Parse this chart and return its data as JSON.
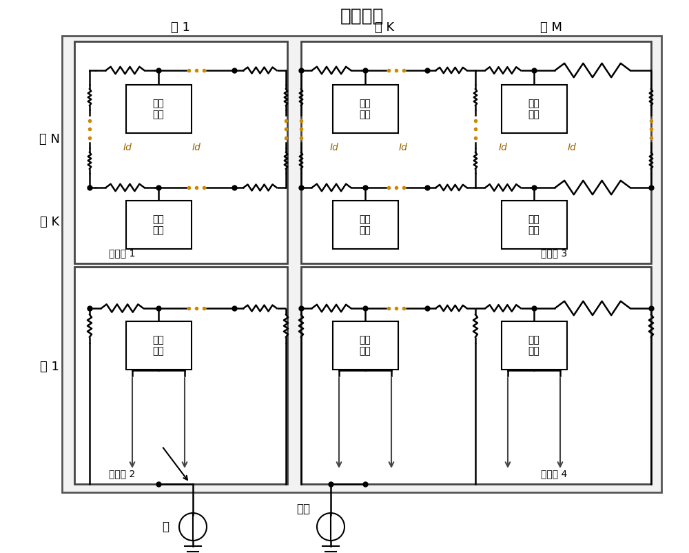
{
  "title": "阵列电路",
  "col1_label": "列 1",
  "colK_label": "列 K",
  "colM_label": "列 M",
  "rowN_label": "行 N",
  "rowK_label": "行 K",
  "row1_label": "行 1",
  "sub1_label": "子区域 1",
  "sub2_label": "子区域 2",
  "sub3_label": "子区域 3",
  "sub4_label": "子区域 4",
  "cell_label": "单元\n电路",
  "id_label": "Id",
  "gnd_label": "地",
  "pwr_label": "电源",
  "figsize": [
    10,
    8.02
  ],
  "dpi": 100
}
